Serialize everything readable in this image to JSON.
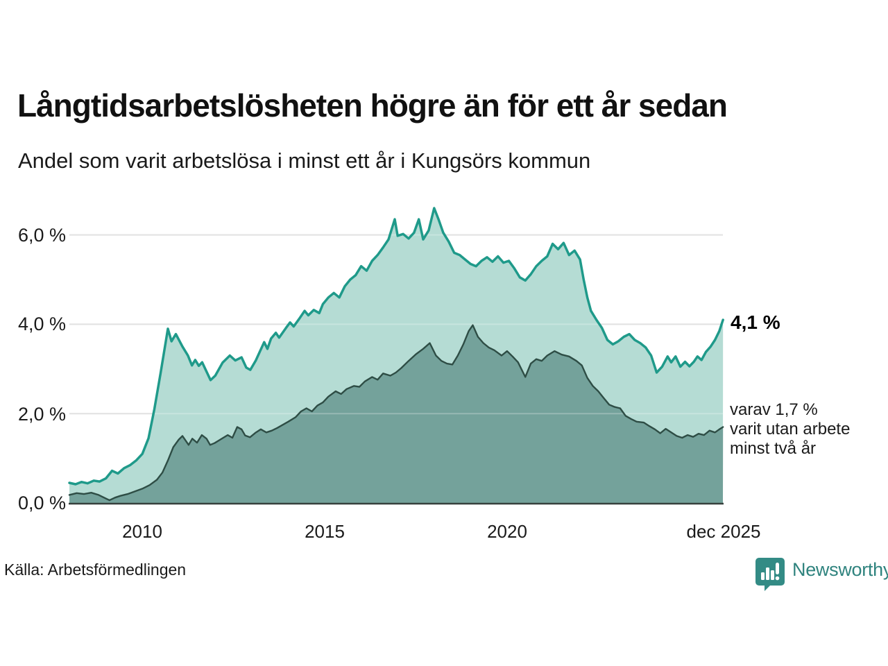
{
  "header": {
    "title": "Långtidsarbetslösheten högre än för ett år sedan",
    "subtitle": "Andel som varit arbetslösa i minst ett år i Kungsörs kommun"
  },
  "annotations": {
    "primary": "4,1 %",
    "secondary": "varav 1,7 %\nvarit utan arbete\nminst två år"
  },
  "footer": {
    "source": "Källa: Arbetsförmedlingen",
    "logo_text": "Newsworthy"
  },
  "colors": {
    "line_1yr": "#1f9a8a",
    "fill_1yr": "#b5dcd4",
    "line_2yr": "#2e4d45",
    "fill_2yr": "#74a29b",
    "grid": "#d9d9d9",
    "axis": "#37403d",
    "logo_teal": "#338b85",
    "text": "#1a1a1a"
  },
  "chart_data": {
    "type": "area",
    "title": "Långtidsarbetslösheten högre än för ett år sedan",
    "subtitle": "Andel som varit arbetslösa i minst ett år i Kungsörs kommun",
    "unit": "%",
    "x_range": [
      2008.0,
      2025.9167
    ],
    "y_range": [
      0,
      6.6
    ],
    "grid": "horizontal",
    "x_axis": {
      "tick_labels": [
        "2010",
        "2015",
        "2020",
        "dec 2025"
      ],
      "tick_positions": [
        2010,
        2015,
        2020,
        2025.9167
      ]
    },
    "y_axis": {
      "tick_labels": [
        "0,0 %",
        "2,0 %",
        "4,0 %",
        "6,0 %"
      ],
      "tick_values": [
        0,
        2,
        4,
        6
      ]
    },
    "series": [
      {
        "name": "Andel arbetslösa minst ett år",
        "line_color": "#1f9a8a",
        "fill_color": "#b5dcd4",
        "line_width": 3.5,
        "end_value": 4.1,
        "end_label": "4,1 %",
        "points": [
          [
            2008.0,
            0.45
          ],
          [
            2008.17,
            0.42
          ],
          [
            2008.33,
            0.47
          ],
          [
            2008.5,
            0.44
          ],
          [
            2008.67,
            0.5
          ],
          [
            2008.83,
            0.48
          ],
          [
            2009.0,
            0.55
          ],
          [
            2009.17,
            0.72
          ],
          [
            2009.33,
            0.66
          ],
          [
            2009.5,
            0.78
          ],
          [
            2009.67,
            0.85
          ],
          [
            2009.83,
            0.95
          ],
          [
            2010.0,
            1.1
          ],
          [
            2010.17,
            1.45
          ],
          [
            2010.33,
            2.1
          ],
          [
            2010.5,
            2.9
          ],
          [
            2010.6,
            3.4
          ],
          [
            2010.7,
            3.9
          ],
          [
            2010.8,
            3.62
          ],
          [
            2010.92,
            3.78
          ],
          [
            2011.1,
            3.5
          ],
          [
            2011.25,
            3.3
          ],
          [
            2011.36,
            3.08
          ],
          [
            2011.45,
            3.2
          ],
          [
            2011.55,
            3.07
          ],
          [
            2011.64,
            3.15
          ],
          [
            2011.87,
            2.75
          ],
          [
            2012.0,
            2.85
          ],
          [
            2012.2,
            3.14
          ],
          [
            2012.4,
            3.3
          ],
          [
            2012.55,
            3.19
          ],
          [
            2012.72,
            3.26
          ],
          [
            2012.85,
            3.03
          ],
          [
            2012.96,
            2.98
          ],
          [
            2013.11,
            3.19
          ],
          [
            2013.34,
            3.6
          ],
          [
            2013.43,
            3.45
          ],
          [
            2013.53,
            3.68
          ],
          [
            2013.66,
            3.81
          ],
          [
            2013.75,
            3.7
          ],
          [
            2013.94,
            3.92
          ],
          [
            2014.05,
            4.04
          ],
          [
            2014.15,
            3.95
          ],
          [
            2014.3,
            4.12
          ],
          [
            2014.45,
            4.3
          ],
          [
            2014.55,
            4.2
          ],
          [
            2014.7,
            4.32
          ],
          [
            2014.85,
            4.25
          ],
          [
            2014.95,
            4.45
          ],
          [
            2015.1,
            4.6
          ],
          [
            2015.25,
            4.7
          ],
          [
            2015.4,
            4.6
          ],
          [
            2015.55,
            4.85
          ],
          [
            2015.7,
            5.0
          ],
          [
            2015.85,
            5.1
          ],
          [
            2016.0,
            5.3
          ],
          [
            2016.15,
            5.2
          ],
          [
            2016.3,
            5.42
          ],
          [
            2016.45,
            5.55
          ],
          [
            2016.6,
            5.72
          ],
          [
            2016.75,
            5.9
          ],
          [
            2016.92,
            6.35
          ],
          [
            2017.0,
            5.98
          ],
          [
            2017.15,
            6.02
          ],
          [
            2017.3,
            5.92
          ],
          [
            2017.45,
            6.05
          ],
          [
            2017.58,
            6.35
          ],
          [
            2017.7,
            5.9
          ],
          [
            2017.85,
            6.1
          ],
          [
            2018.0,
            6.6
          ],
          [
            2018.12,
            6.35
          ],
          [
            2018.25,
            6.05
          ],
          [
            2018.4,
            5.85
          ],
          [
            2018.55,
            5.6
          ],
          [
            2018.7,
            5.55
          ],
          [
            2018.85,
            5.45
          ],
          [
            2019.0,
            5.35
          ],
          [
            2019.15,
            5.3
          ],
          [
            2019.3,
            5.42
          ],
          [
            2019.45,
            5.5
          ],
          [
            2019.6,
            5.4
          ],
          [
            2019.75,
            5.52
          ],
          [
            2019.9,
            5.38
          ],
          [
            2020.05,
            5.42
          ],
          [
            2020.2,
            5.25
          ],
          [
            2020.35,
            5.05
          ],
          [
            2020.5,
            4.98
          ],
          [
            2020.65,
            5.12
          ],
          [
            2020.8,
            5.3
          ],
          [
            2020.95,
            5.42
          ],
          [
            2021.1,
            5.52
          ],
          [
            2021.25,
            5.8
          ],
          [
            2021.4,
            5.68
          ],
          [
            2021.55,
            5.82
          ],
          [
            2021.7,
            5.55
          ],
          [
            2021.85,
            5.65
          ],
          [
            2022.0,
            5.45
          ],
          [
            2022.1,
            5.0
          ],
          [
            2022.2,
            4.6
          ],
          [
            2022.3,
            4.3
          ],
          [
            2022.45,
            4.1
          ],
          [
            2022.6,
            3.92
          ],
          [
            2022.75,
            3.65
          ],
          [
            2022.9,
            3.55
          ],
          [
            2023.05,
            3.62
          ],
          [
            2023.2,
            3.72
          ],
          [
            2023.35,
            3.78
          ],
          [
            2023.5,
            3.65
          ],
          [
            2023.65,
            3.58
          ],
          [
            2023.8,
            3.48
          ],
          [
            2023.95,
            3.3
          ],
          [
            2024.1,
            2.92
          ],
          [
            2024.25,
            3.05
          ],
          [
            2024.4,
            3.28
          ],
          [
            2024.5,
            3.15
          ],
          [
            2024.62,
            3.28
          ],
          [
            2024.75,
            3.05
          ],
          [
            2024.88,
            3.16
          ],
          [
            2025.0,
            3.06
          ],
          [
            2025.12,
            3.16
          ],
          [
            2025.22,
            3.28
          ],
          [
            2025.33,
            3.2
          ],
          [
            2025.45,
            3.38
          ],
          [
            2025.58,
            3.5
          ],
          [
            2025.7,
            3.65
          ],
          [
            2025.82,
            3.85
          ],
          [
            2025.92,
            4.1
          ]
        ]
      },
      {
        "name": "Andel arbetslösa minst två år",
        "line_color": "#2e4d45",
        "fill_color": "#74a29b",
        "line_width": 2.4,
        "end_value": 1.7,
        "end_label": "varav 1,7 % varit utan arbete minst två år",
        "points": [
          [
            2008.0,
            0.18
          ],
          [
            2008.2,
            0.22
          ],
          [
            2008.4,
            0.2
          ],
          [
            2008.6,
            0.23
          ],
          [
            2008.8,
            0.18
          ],
          [
            2009.0,
            0.1
          ],
          [
            2009.1,
            0.06
          ],
          [
            2009.25,
            0.12
          ],
          [
            2009.4,
            0.16
          ],
          [
            2009.6,
            0.2
          ],
          [
            2009.8,
            0.26
          ],
          [
            2010.0,
            0.32
          ],
          [
            2010.2,
            0.4
          ],
          [
            2010.4,
            0.52
          ],
          [
            2010.55,
            0.68
          ],
          [
            2010.7,
            0.95
          ],
          [
            2010.85,
            1.25
          ],
          [
            2011.0,
            1.42
          ],
          [
            2011.1,
            1.5
          ],
          [
            2011.27,
            1.3
          ],
          [
            2011.37,
            1.44
          ],
          [
            2011.5,
            1.35
          ],
          [
            2011.63,
            1.52
          ],
          [
            2011.76,
            1.44
          ],
          [
            2011.86,
            1.3
          ],
          [
            2011.98,
            1.34
          ],
          [
            2012.2,
            1.45
          ],
          [
            2012.34,
            1.52
          ],
          [
            2012.47,
            1.46
          ],
          [
            2012.6,
            1.7
          ],
          [
            2012.72,
            1.65
          ],
          [
            2012.82,
            1.51
          ],
          [
            2012.95,
            1.47
          ],
          [
            2013.1,
            1.57
          ],
          [
            2013.25,
            1.65
          ],
          [
            2013.4,
            1.58
          ],
          [
            2013.55,
            1.62
          ],
          [
            2013.7,
            1.68
          ],
          [
            2013.85,
            1.75
          ],
          [
            2014.0,
            1.82
          ],
          [
            2014.2,
            1.92
          ],
          [
            2014.35,
            2.05
          ],
          [
            2014.5,
            2.12
          ],
          [
            2014.65,
            2.05
          ],
          [
            2014.8,
            2.18
          ],
          [
            2014.95,
            2.25
          ],
          [
            2015.1,
            2.38
          ],
          [
            2015.3,
            2.5
          ],
          [
            2015.45,
            2.44
          ],
          [
            2015.6,
            2.55
          ],
          [
            2015.8,
            2.62
          ],
          [
            2015.95,
            2.6
          ],
          [
            2016.1,
            2.72
          ],
          [
            2016.3,
            2.82
          ],
          [
            2016.45,
            2.76
          ],
          [
            2016.6,
            2.9
          ],
          [
            2016.8,
            2.85
          ],
          [
            2016.95,
            2.92
          ],
          [
            2017.1,
            3.02
          ],
          [
            2017.3,
            3.18
          ],
          [
            2017.5,
            3.33
          ],
          [
            2017.7,
            3.45
          ],
          [
            2017.88,
            3.58
          ],
          [
            2018.05,
            3.3
          ],
          [
            2018.2,
            3.18
          ],
          [
            2018.35,
            3.12
          ],
          [
            2018.5,
            3.1
          ],
          [
            2018.65,
            3.3
          ],
          [
            2018.8,
            3.55
          ],
          [
            2018.95,
            3.85
          ],
          [
            2019.06,
            3.98
          ],
          [
            2019.2,
            3.72
          ],
          [
            2019.35,
            3.58
          ],
          [
            2019.5,
            3.48
          ],
          [
            2019.65,
            3.42
          ],
          [
            2019.85,
            3.3
          ],
          [
            2020.0,
            3.4
          ],
          [
            2020.15,
            3.28
          ],
          [
            2020.3,
            3.15
          ],
          [
            2020.5,
            2.82
          ],
          [
            2020.65,
            3.12
          ],
          [
            2020.8,
            3.22
          ],
          [
            2020.95,
            3.18
          ],
          [
            2021.1,
            3.3
          ],
          [
            2021.3,
            3.4
          ],
          [
            2021.5,
            3.32
          ],
          [
            2021.7,
            3.28
          ],
          [
            2021.9,
            3.18
          ],
          [
            2022.05,
            3.08
          ],
          [
            2022.2,
            2.8
          ],
          [
            2022.35,
            2.62
          ],
          [
            2022.5,
            2.5
          ],
          [
            2022.65,
            2.35
          ],
          [
            2022.8,
            2.2
          ],
          [
            2022.95,
            2.15
          ],
          [
            2023.1,
            2.12
          ],
          [
            2023.25,
            1.95
          ],
          [
            2023.4,
            1.88
          ],
          [
            2023.55,
            1.82
          ],
          [
            2023.75,
            1.8
          ],
          [
            2023.9,
            1.72
          ],
          [
            2024.05,
            1.65
          ],
          [
            2024.2,
            1.56
          ],
          [
            2024.35,
            1.66
          ],
          [
            2024.5,
            1.58
          ],
          [
            2024.65,
            1.5
          ],
          [
            2024.8,
            1.46
          ],
          [
            2024.95,
            1.52
          ],
          [
            2025.1,
            1.48
          ],
          [
            2025.25,
            1.55
          ],
          [
            2025.4,
            1.52
          ],
          [
            2025.55,
            1.62
          ],
          [
            2025.7,
            1.58
          ],
          [
            2025.82,
            1.65
          ],
          [
            2025.92,
            1.7
          ]
        ]
      }
    ]
  }
}
